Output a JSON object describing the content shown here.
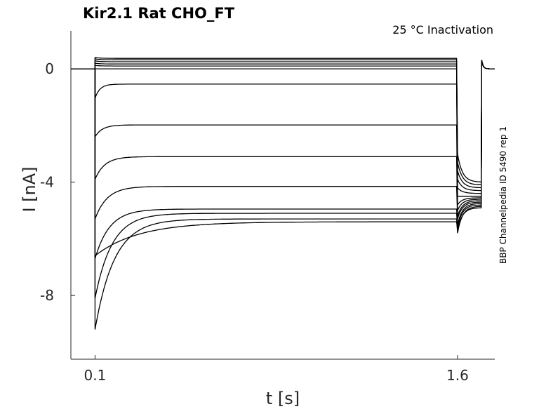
{
  "chart_data": {
    "type": "line",
    "title": "Kir2.1  Rat  CHO_FT",
    "subtitle": "25 °C  Inactivation",
    "side_note": "BBP Channelpedia ID 5490 rep 1",
    "xlabel": "t [s]",
    "ylabel": "I [nA]",
    "xlim": [
      0,
      1.754
    ],
    "ylim": [
      -10.25,
      1.34
    ],
    "xticks": [
      {
        "value": 0.1,
        "label": "0.1"
      },
      {
        "value": 1.6,
        "label": "1.6"
      }
    ],
    "yticks": [
      {
        "value": 0,
        "label": "0"
      },
      {
        "value": -4,
        "label": "-4"
      },
      {
        "value": -8,
        "label": "-8"
      }
    ],
    "protocol": {
      "step_start": 0.1,
      "step_end": 1.6,
      "tail_end": 1.7
    },
    "series": [
      {
        "peak": 0.4,
        "steady": 0.37,
        "tail_start": -3.0,
        "tail_end": -4.0,
        "tau": 0.02
      },
      {
        "peak": 0.35,
        "steady": 0.32,
        "tail_start": -3.3,
        "tail_end": -4.1,
        "tau": 0.02
      },
      {
        "peak": 0.28,
        "steady": 0.25,
        "tail_start": -3.6,
        "tail_end": -4.2,
        "tau": 0.02
      },
      {
        "peak": 0.2,
        "steady": 0.17,
        "tail_start": -3.9,
        "tail_end": -4.3,
        "tau": 0.02
      },
      {
        "peak": 0.12,
        "steady": 0.1,
        "tail_start": -4.2,
        "tail_end": -4.4,
        "tau": 0.02
      },
      {
        "peak": 0.0,
        "steady": 0.0,
        "tail_start": -4.5,
        "tail_end": -4.5,
        "tau": 0.02
      },
      {
        "peak": -1.04,
        "steady": -0.54,
        "tail_start": -4.8,
        "tail_end": -4.55,
        "tau": 0.02
      },
      {
        "peak": -2.4,
        "steady": -1.98,
        "tail_start": -5.0,
        "tail_end": -4.6,
        "tau": 0.03
      },
      {
        "peak": -3.9,
        "steady": -3.1,
        "tail_start": -5.2,
        "tail_end": -4.65,
        "tau": 0.04
      },
      {
        "peak": -5.3,
        "steady": -4.15,
        "tail_start": -5.3,
        "tail_end": -4.7,
        "tau": 0.05
      },
      {
        "peak": -6.7,
        "steady": -4.95,
        "tail_start": -5.5,
        "tail_end": -4.75,
        "tau": 0.06
      },
      {
        "peak": -8.1,
        "steady": -5.1,
        "tail_start": -5.6,
        "tail_end": -4.8,
        "tau": 0.07
      },
      {
        "peak": -9.2,
        "steady": -5.3,
        "tail_start": -5.8,
        "tail_end": -4.85,
        "tau": 0.08
      },
      {
        "peak": -6.6,
        "steady": -5.4,
        "tail_start": -5.7,
        "tail_end": -4.9,
        "tau": 0.18
      }
    ]
  }
}
